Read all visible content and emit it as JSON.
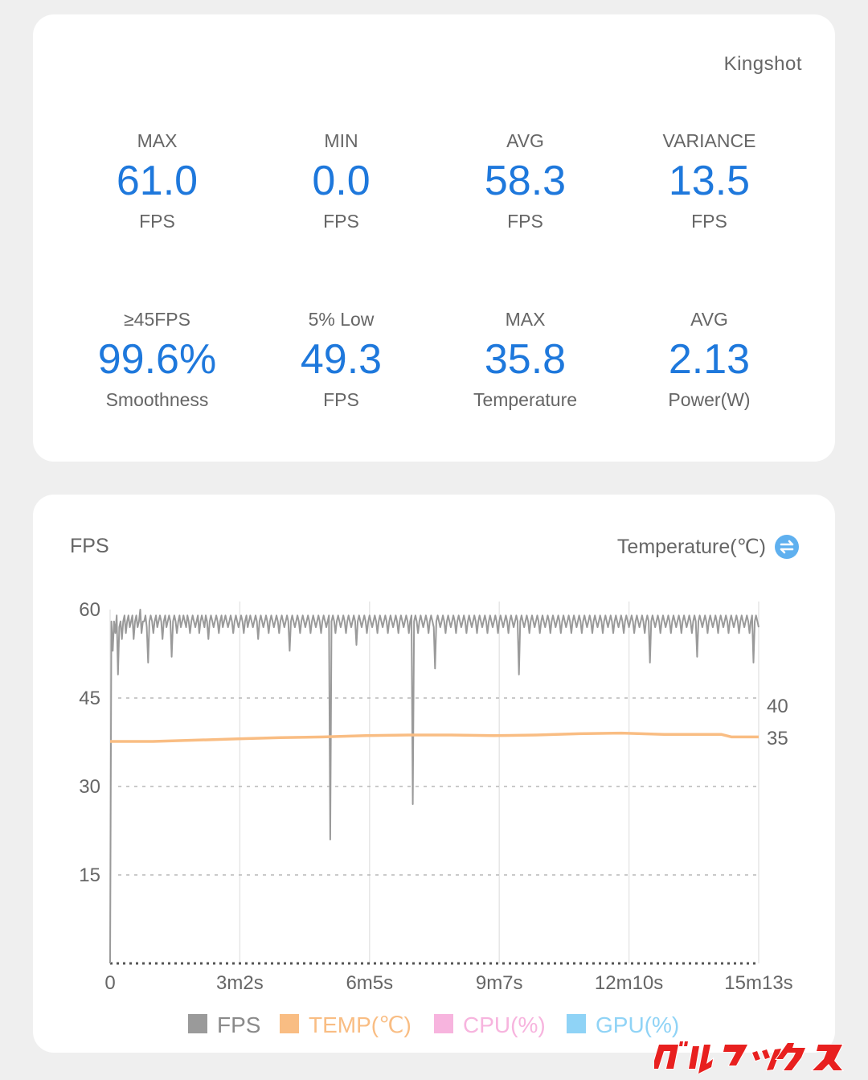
{
  "game_title": "Kingshot",
  "stats": [
    {
      "label": "MAX",
      "value": "61.0",
      "unit": "FPS"
    },
    {
      "label": "MIN",
      "value": "0.0",
      "unit": "FPS"
    },
    {
      "label": "AVG",
      "value": "58.3",
      "unit": "FPS"
    },
    {
      "label": "VARIANCE",
      "value": "13.5",
      "unit": "FPS"
    },
    {
      "label": "≥45FPS",
      "value": "99.6%",
      "unit": "Smoothness"
    },
    {
      "label": "5% Low",
      "value": "49.3",
      "unit": "FPS"
    },
    {
      "label": "MAX",
      "value": "35.8",
      "unit": "Temperature"
    },
    {
      "label": "AVG",
      "value": "2.13",
      "unit": "Power(W)"
    }
  ],
  "chart_header": {
    "left_title": "FPS",
    "right_title": "Temperature(℃)",
    "toggle_icon": "swap-icon"
  },
  "colors": {
    "accent_value": "#1e78dc",
    "fps": "#9a9a9a",
    "temp": "#f9bd83",
    "cpu": "#f7b4de",
    "gpu": "#8fd3f6"
  },
  "chart_data": {
    "type": "line",
    "x_ticks": [
      "0",
      "3m2s",
      "6m5s",
      "9m7s",
      "12m10s",
      "15m13s"
    ],
    "x_range_seconds": [
      0,
      913
    ],
    "y_left": {
      "ticks": [
        "15",
        "30",
        "45",
        "60"
      ],
      "range": [
        0,
        60
      ]
    },
    "y_right": {
      "ticks": [
        "35",
        "40"
      ],
      "range": [
        0,
        55
      ]
    },
    "grid": true,
    "legend_position": "bottom",
    "series": [
      {
        "name": "FPS",
        "axis": "left",
        "values": [
          0,
          58,
          53,
          58,
          56,
          59,
          49,
          57,
          58,
          55,
          58,
          59,
          56,
          58,
          59,
          57,
          58,
          59,
          55,
          58,
          59,
          57,
          58,
          60,
          56,
          58,
          58,
          59,
          57,
          51,
          58,
          59,
          58,
          56,
          58,
          59,
          57,
          58,
          59,
          58,
          55,
          58,
          59,
          57,
          58,
          59,
          58,
          52,
          58,
          59,
          58,
          56,
          58,
          59,
          57,
          58,
          59,
          58,
          57,
          59,
          58,
          56,
          58,
          59,
          58,
          57,
          58,
          59,
          56,
          58,
          59,
          58,
          57,
          59,
          58,
          55,
          58,
          59,
          58,
          57,
          58,
          59,
          58,
          56,
          58,
          59,
          57,
          58,
          59,
          58,
          57,
          58,
          59,
          58,
          56,
          58,
          59,
          58,
          57,
          58,
          59,
          58,
          56,
          58,
          59,
          57,
          58,
          59,
          58,
          57,
          58,
          59,
          58,
          55,
          58,
          59,
          58,
          57,
          58,
          59,
          58,
          56,
          58,
          59,
          58,
          57,
          58,
          59,
          58,
          56,
          58,
          59,
          58,
          57,
          58,
          59,
          58,
          53,
          58,
          59,
          58,
          57,
          58,
          59,
          58,
          56,
          58,
          59,
          58,
          57,
          58,
          59,
          58,
          56,
          58,
          59,
          58,
          57,
          58,
          59,
          58,
          56,
          58,
          59,
          58,
          57,
          58,
          59,
          21,
          58,
          59,
          58,
          56,
          58,
          59,
          58,
          57,
          58,
          59,
          58,
          56,
          58,
          59,
          58,
          57,
          58,
          59,
          58,
          54,
          58,
          59,
          58,
          57,
          58,
          59,
          58,
          56,
          58,
          59,
          58,
          57,
          58,
          59,
          58,
          56,
          58,
          59,
          58,
          57,
          58,
          59,
          58,
          56,
          58,
          59,
          58,
          57,
          58,
          59,
          58,
          56,
          58,
          59,
          58,
          57,
          58,
          59,
          58,
          56,
          58,
          59,
          27,
          58,
          59,
          58,
          56,
          58,
          59,
          58,
          57,
          58,
          59,
          58,
          56,
          58,
          59,
          58,
          57,
          50,
          58,
          59,
          58,
          57,
          58,
          59,
          58,
          56,
          58,
          59,
          58,
          57,
          58,
          59,
          58,
          56,
          58,
          59,
          58,
          57,
          58,
          59,
          58,
          56,
          58,
          59,
          58,
          57,
          58,
          59,
          58,
          56,
          58,
          59,
          58,
          57,
          58,
          59,
          58,
          56,
          58,
          59,
          58,
          57,
          58,
          59,
          58,
          56,
          58,
          59,
          58,
          57,
          58,
          59,
          58,
          56,
          58,
          59,
          58,
          57,
          58,
          59,
          58,
          49,
          58,
          59,
          58,
          57,
          58,
          59,
          58,
          56,
          58,
          59,
          58,
          57,
          58,
          59,
          58,
          56,
          58,
          59,
          58,
          57,
          58,
          59,
          58,
          56,
          58,
          59,
          58,
          57,
          58,
          59,
          58,
          56,
          58,
          59,
          58,
          57,
          58,
          59,
          58,
          56,
          58,
          59,
          58,
          57,
          58,
          59,
          58,
          56,
          58,
          59,
          58,
          57,
          58,
          59,
          58,
          56,
          58,
          59,
          58,
          57,
          58,
          59,
          58,
          56,
          58,
          59,
          58,
          57,
          58,
          59,
          58,
          56,
          58,
          59,
          58,
          57,
          58,
          59,
          58,
          56,
          58,
          59,
          58,
          57,
          58,
          59,
          58,
          56,
          58,
          59,
          58,
          57,
          58,
          59,
          58,
          56,
          58,
          59,
          58,
          51,
          58,
          59,
          58,
          57,
          58,
          59,
          58,
          56,
          58,
          59,
          58,
          57,
          58,
          59,
          58,
          56,
          58,
          59,
          58,
          57,
          58,
          59,
          58,
          56,
          58,
          59,
          58,
          57,
          58,
          59,
          58,
          56,
          58,
          59,
          58,
          52,
          58,
          59,
          58,
          57,
          58,
          59,
          58,
          56,
          58,
          59,
          58,
          57,
          58,
          59,
          58,
          56,
          58,
          59,
          58,
          57,
          58,
          59,
          58,
          56,
          58,
          59,
          58,
          57,
          58,
          59,
          58,
          56,
          58,
          59,
          58,
          57,
          58,
          59,
          58,
          56,
          58,
          59,
          51,
          58,
          59,
          58,
          57
        ]
      },
      {
        "name": "TEMP(℃)",
        "axis": "right",
        "points": [
          [
            0,
            34.5
          ],
          [
            60,
            34.5
          ],
          [
            120,
            34.7
          ],
          [
            180,
            34.9
          ],
          [
            240,
            35.1
          ],
          [
            300,
            35.2
          ],
          [
            360,
            35.4
          ],
          [
            420,
            35.5
          ],
          [
            480,
            35.5
          ],
          [
            540,
            35.4
          ],
          [
            600,
            35.5
          ],
          [
            660,
            35.7
          ],
          [
            720,
            35.8
          ],
          [
            780,
            35.6
          ],
          [
            860,
            35.6
          ],
          [
            875,
            35.2
          ],
          [
            913,
            35.2
          ]
        ]
      },
      {
        "name": "CPU(%)",
        "axis": "left",
        "values": []
      },
      {
        "name": "GPU(%)",
        "axis": "left",
        "values": []
      }
    ]
  },
  "watermark_text": "ガルマックス"
}
